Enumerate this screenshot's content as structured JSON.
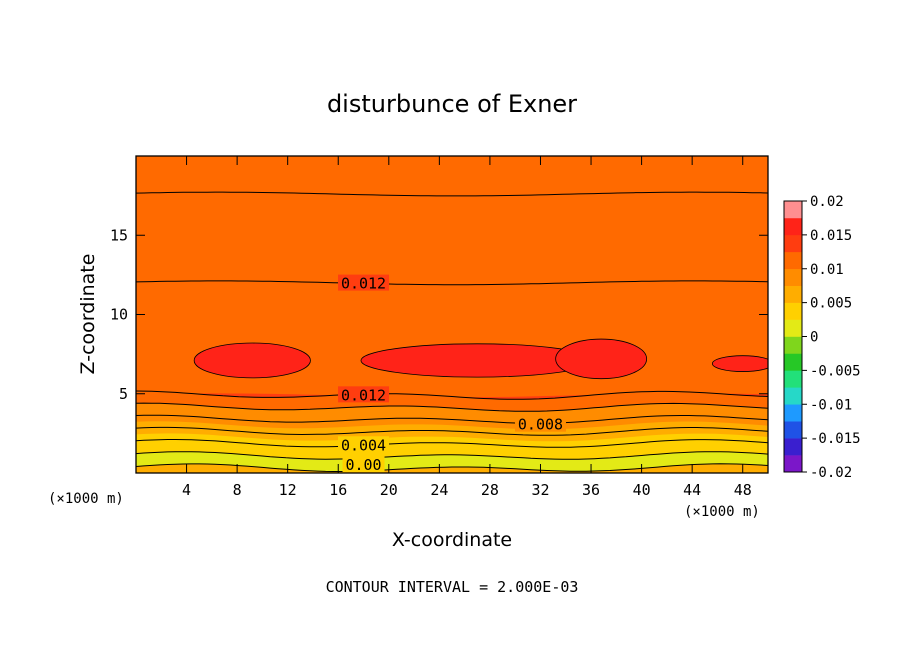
{
  "chart_data": {
    "type": "contour",
    "title": "disturbunce of Exner",
    "xlabel": "X-coordinate",
    "ylabel": "Z-coordinate",
    "x_unit": "(×1000 m)",
    "y_unit": "(×1000 m)",
    "xlim": [
      0,
      50
    ],
    "ylim": [
      0,
      20
    ],
    "x_ticks": [
      4,
      8,
      12,
      16,
      20,
      24,
      28,
      32,
      36,
      40,
      44,
      48
    ],
    "y_ticks": [
      5,
      10,
      15
    ],
    "footer": "CONTOUR INTERVAL = 2.000E-03",
    "contour_interval": 0.002,
    "contour_labels": [
      {
        "text": "0.012",
        "x": 18,
        "z": 11.95
      },
      {
        "text": "0.012",
        "x": 18,
        "z": 4.9
      },
      {
        "text": "0.008",
        "x": 32,
        "z": 3.05
      },
      {
        "text": "0.004",
        "x": 18,
        "z": 1.75
      },
      {
        "text": "0.00",
        "x": 18,
        "z": 0.5
      }
    ],
    "colorbar": {
      "ticks": [
        "0.02",
        "0.015",
        "0.01",
        "0.005",
        "0",
        "-0.005",
        "-0.01",
        "-0.015",
        "-0.02"
      ],
      "range": [
        -0.02,
        0.02
      ],
      "colors": [
        "#7b17c9",
        "#3a1fcf",
        "#1f52e6",
        "#1e9aff",
        "#26d8c8",
        "#22e07a",
        "#26c826",
        "#7fd61c",
        "#e3ea16",
        "#ffd000",
        "#ffad00",
        "#ff8c00",
        "#ff6a00",
        "#ff3d10",
        "#ff2318",
        "#ff8f90"
      ]
    }
  }
}
